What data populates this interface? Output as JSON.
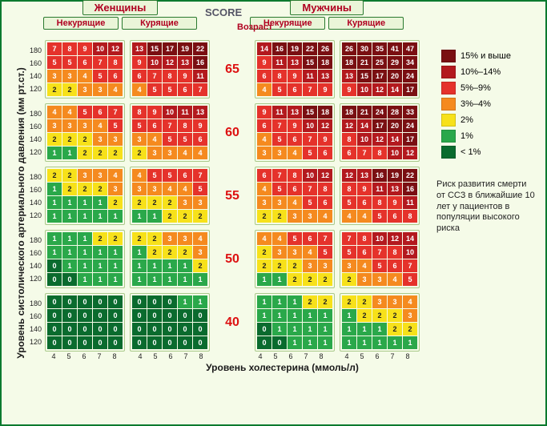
{
  "title": "SCORE",
  "genders": {
    "women": "Женщины",
    "men": "Мужчины"
  },
  "smoke": {
    "no": "Некурящие",
    "yes": "Курящие"
  },
  "age_caption": "Возраст",
  "y_axis": "Уровень систолического артериального давления (мм рт.ст.)",
  "x_axis": "Уровень холестерина (ммоль/л)",
  "bp_ticks": [
    180,
    160,
    140,
    120
  ],
  "chol_ticks": [
    4,
    5,
    6,
    7,
    8
  ],
  "ages": [
    65,
    60,
    55,
    50,
    40
  ],
  "legend": [
    {
      "c": "#7a0f12",
      "t": "15% и выше"
    },
    {
      "c": "#b3191e",
      "t": "10%–14%"
    },
    {
      "c": "#e5322b",
      "t": "5%–9%"
    },
    {
      "c": "#f58a1f",
      "t": "3%–4%"
    },
    {
      "c": "#f7e11a",
      "t": "2%"
    },
    {
      "c": "#2aa84a",
      "t": "1%"
    },
    {
      "c": "#0a6b2e",
      "t": "< 1%"
    }
  ],
  "desc": "Риск развития смерти от ССЗ  в ближайшие 10 лет  у пациентов в популяции  высокого риска",
  "risk_colors": {
    "0": "#0a6b2e",
    "1": "#2aa84a",
    "2": "#f7e11a",
    "3": "#f58a1f",
    "4": "#f58a1f",
    "5": "#e5322b",
    "6": "#e5322b",
    "7": "#e5322b",
    "8": "#e5322b",
    "9": "#e5322b",
    "10": "#b3191e",
    "11": "#b3191e",
    "12": "#b3191e",
    "13": "#b3191e",
    "14": "#b3191e",
    "15+": "#7a0f12"
  },
  "text_dark_on": [
    "#f7e11a"
  ],
  "grids": {
    "65": {
      "women_ns": [
        [
          7,
          8,
          9,
          10,
          12
        ],
        [
          5,
          5,
          6,
          7,
          8
        ],
        [
          3,
          3,
          4,
          5,
          6
        ],
        [
          2,
          2,
          3,
          3,
          4
        ]
      ],
      "women_sm": [
        [
          13,
          15,
          17,
          19,
          22
        ],
        [
          9,
          10,
          12,
          13,
          16
        ],
        [
          6,
          7,
          8,
          9,
          11
        ],
        [
          4,
          5,
          5,
          6,
          7
        ]
      ],
      "men_ns": [
        [
          14,
          16,
          19,
          22,
          26
        ],
        [
          9,
          11,
          13,
          15,
          18
        ],
        [
          6,
          8,
          9,
          11,
          13
        ],
        [
          4,
          5,
          6,
          7,
          9
        ]
      ],
      "men_sm": [
        [
          26,
          30,
          35,
          41,
          47
        ],
        [
          18,
          21,
          25,
          29,
          34
        ],
        [
          13,
          15,
          17,
          20,
          24
        ],
        [
          9,
          10,
          12,
          14,
          17
        ]
      ]
    },
    "60": {
      "women_ns": [
        [
          4,
          4,
          5,
          6,
          7
        ],
        [
          3,
          3,
          3,
          4,
          5
        ],
        [
          2,
          2,
          2,
          3,
          3
        ],
        [
          1,
          1,
          2,
          2,
          2
        ]
      ],
      "women_sm": [
        [
          8,
          9,
          10,
          11,
          13
        ],
        [
          5,
          6,
          7,
          8,
          9
        ],
        [
          3,
          4,
          5,
          5,
          6
        ],
        [
          2,
          3,
          3,
          4,
          4
        ]
      ],
      "men_ns": [
        [
          9,
          11,
          13,
          15,
          18
        ],
        [
          6,
          7,
          9,
          10,
          12
        ],
        [
          4,
          5,
          6,
          7,
          9
        ],
        [
          3,
          3,
          4,
          5,
          6
        ]
      ],
      "men_sm": [
        [
          18,
          21,
          24,
          28,
          33
        ],
        [
          12,
          14,
          17,
          20,
          24
        ],
        [
          8,
          10,
          12,
          14,
          17
        ],
        [
          6,
          7,
          8,
          10,
          12
        ]
      ]
    },
    "55": {
      "women_ns": [
        [
          2,
          2,
          3,
          3,
          4
        ],
        [
          1,
          2,
          2,
          2,
          3
        ],
        [
          1,
          1,
          1,
          1,
          2
        ],
        [
          1,
          1,
          1,
          1,
          1
        ]
      ],
      "women_sm": [
        [
          4,
          5,
          5,
          6,
          7
        ],
        [
          3,
          3,
          4,
          4,
          5
        ],
        [
          2,
          2,
          2,
          3,
          3
        ],
        [
          1,
          1,
          2,
          2,
          2
        ]
      ],
      "men_ns": [
        [
          6,
          7,
          8,
          10,
          12
        ],
        [
          4,
          5,
          6,
          7,
          8
        ],
        [
          3,
          3,
          4,
          5,
          6
        ],
        [
          2,
          2,
          3,
          3,
          4
        ]
      ],
      "men_sm": [
        [
          12,
          13,
          16,
          19,
          22
        ],
        [
          8,
          9,
          11,
          13,
          16
        ],
        [
          5,
          6,
          8,
          9,
          11
        ],
        [
          4,
          4,
          5,
          6,
          8
        ]
      ]
    },
    "50": {
      "women_ns": [
        [
          1,
          1,
          1,
          2,
          2
        ],
        [
          1,
          1,
          1,
          1,
          1
        ],
        [
          0,
          1,
          1,
          1,
          1
        ],
        [
          0,
          0,
          1,
          1,
          1
        ]
      ],
      "women_sm": [
        [
          2,
          2,
          3,
          3,
          4
        ],
        [
          1,
          2,
          2,
          2,
          3
        ],
        [
          1,
          1,
          1,
          1,
          2
        ],
        [
          1,
          1,
          1,
          1,
          1
        ]
      ],
      "men_ns": [
        [
          4,
          4,
          5,
          6,
          7
        ],
        [
          2,
          3,
          3,
          4,
          5
        ],
        [
          2,
          2,
          2,
          3,
          3
        ],
        [
          1,
          1,
          2,
          2,
          2
        ]
      ],
      "men_sm": [
        [
          7,
          8,
          10,
          12,
          14
        ],
        [
          5,
          6,
          7,
          8,
          10
        ],
        [
          3,
          4,
          5,
          6,
          7
        ],
        [
          2,
          3,
          3,
          4,
          5
        ]
      ]
    },
    "40": {
      "women_ns": [
        [
          0,
          0,
          0,
          0,
          0
        ],
        [
          0,
          0,
          0,
          0,
          0
        ],
        [
          0,
          0,
          0,
          0,
          0
        ],
        [
          0,
          0,
          0,
          0,
          0
        ]
      ],
      "women_sm": [
        [
          0,
          0,
          0,
          1,
          1
        ],
        [
          0,
          0,
          0,
          0,
          0
        ],
        [
          0,
          0,
          0,
          0,
          0
        ],
        [
          0,
          0,
          0,
          0,
          0
        ]
      ],
      "men_ns": [
        [
          1,
          1,
          1,
          2,
          2
        ],
        [
          1,
          1,
          1,
          1,
          1
        ],
        [
          0,
          1,
          1,
          1,
          1
        ],
        [
          0,
          0,
          1,
          1,
          1
        ]
      ],
      "men_sm": [
        [
          2,
          2,
          3,
          3,
          4
        ],
        [
          1,
          2,
          2,
          2,
          3
        ],
        [
          1,
          1,
          1,
          2,
          2
        ],
        [
          1,
          1,
          1,
          1,
          1
        ]
      ]
    }
  }
}
